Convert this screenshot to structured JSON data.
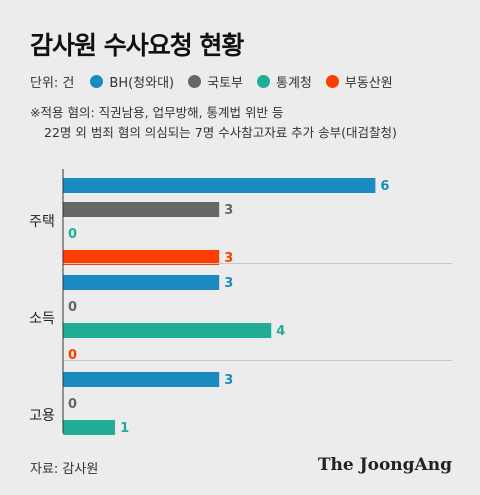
{
  "title": "감사원 수사요청 현황",
  "legend": {
    "unit": "단위: 건",
    "items": [
      {
        "label": "BH(청와대)",
        "color": "#1a8bc0"
      },
      {
        "label": "국토부",
        "color": "#666666"
      },
      {
        "label": "통계청",
        "color": "#21ad96"
      },
      {
        "label": "부동산원",
        "color": "#ff3d00"
      }
    ]
  },
  "note": {
    "line1": "※적용 혐의: 직권남용, 업무방해, 통계법 위반 등",
    "line2": "22명 외 범죄 혐의 의심되는 7명 수사참고자료 추가 송부(대검찰청)"
  },
  "source": "자료: 감사원",
  "brand": "The JoongAng",
  "chart_data": {
    "type": "bar",
    "orientation": "horizontal",
    "title": "감사원 수사요청 현황",
    "unit": "건",
    "categories": [
      "주택",
      "소득",
      "고용"
    ],
    "series": [
      {
        "name": "BH(청와대)",
        "color": "#1a8bc0",
        "values": [
          6,
          3,
          3
        ]
      },
      {
        "name": "국토부",
        "color": "#666666",
        "values": [
          3,
          0,
          0
        ]
      },
      {
        "name": "통계청",
        "color": "#21ad96",
        "values": [
          0,
          4,
          1
        ]
      },
      {
        "name": "부동산원",
        "color": "#ff3d00",
        "values": [
          3,
          0,
          0
        ]
      }
    ],
    "xlim": [
      0,
      6.3
    ],
    "grid": false,
    "legend_position": "top"
  }
}
